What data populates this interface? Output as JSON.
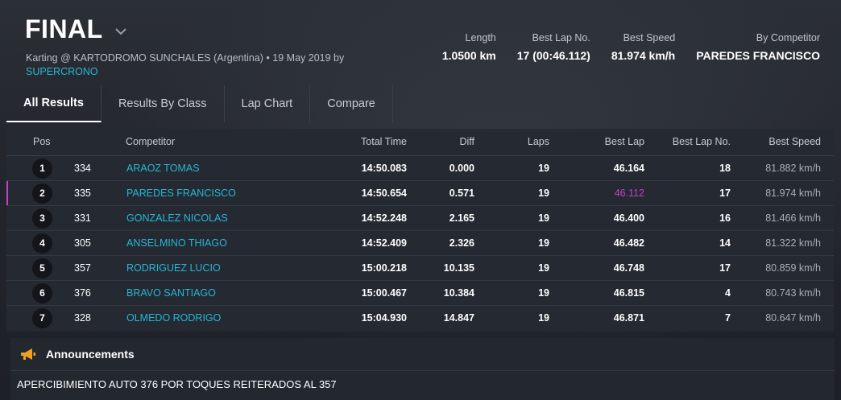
{
  "header": {
    "title": "FINAL",
    "subtitle_main": "Karting @ KARTODROMO SUNCHALES (Argentina) • 19 May 2019 by",
    "subtitle_link": "SUPERCRONO",
    "stats": [
      {
        "label": "Length",
        "value": "1.0500 km"
      },
      {
        "label": "Best Lap No.",
        "value": "17 (00:46.112)"
      },
      {
        "label": "Best Speed",
        "value": "81.974 km/h"
      },
      {
        "label": "By Competitor",
        "value": "PAREDES FRANCISCO"
      }
    ]
  },
  "tabs": [
    "All Results",
    "Results By Class",
    "Lap Chart",
    "Compare"
  ],
  "table": {
    "columns": {
      "pos": "Pos",
      "competitor": "Competitor",
      "total": "Total Time",
      "diff": "Diff",
      "laps": "Laps",
      "best": "Best Lap",
      "bln": "Best Lap No.",
      "speed": "Best Speed"
    },
    "rows": [
      {
        "pos": "1",
        "num": "334",
        "name": "ARAOZ TOMAS",
        "total": "14:50.083",
        "diff": "0.000",
        "laps": "19",
        "best": "46.164",
        "bln": "18",
        "speed": "81.882 km/h"
      },
      {
        "pos": "2",
        "num": "335",
        "name": "PAREDES FRANCISCO",
        "total": "14:50.654",
        "diff": "0.571",
        "laps": "19",
        "best": "46.112",
        "bln": "17",
        "speed": "81.974 km/h"
      },
      {
        "pos": "3",
        "num": "331",
        "name": "GONZALEZ NICOLAS",
        "total": "14:52.248",
        "diff": "2.165",
        "laps": "19",
        "best": "46.400",
        "bln": "16",
        "speed": "81.466 km/h"
      },
      {
        "pos": "4",
        "num": "305",
        "name": "ANSELMINO THIAGO",
        "total": "14:52.409",
        "diff": "2.326",
        "laps": "19",
        "best": "46.482",
        "bln": "14",
        "speed": "81.322 km/h"
      },
      {
        "pos": "5",
        "num": "357",
        "name": "RODRIGUEZ LUCIO",
        "total": "15:00.218",
        "diff": "10.135",
        "laps": "19",
        "best": "46.748",
        "bln": "17",
        "speed": "80.859 km/h"
      },
      {
        "pos": "6",
        "num": "376",
        "name": "BRAVO SANTIAGO",
        "total": "15:00.467",
        "diff": "10.384",
        "laps": "19",
        "best": "46.815",
        "bln": "4",
        "speed": "80.743 km/h"
      },
      {
        "pos": "7",
        "num": "328",
        "name": "OLMEDO RODRIGO",
        "total": "15:04.930",
        "diff": "14.847",
        "laps": "19",
        "best": "46.871",
        "bln": "7",
        "speed": "80.647 km/h"
      }
    ]
  },
  "announcements": {
    "title": "Announcements",
    "icon": "megaphone-icon",
    "text": "APERCIBIMIENTO AUTO 376 POR TOQUES REITERADOS AL 357"
  },
  "colors": {
    "link": "#27b6d6",
    "best_lap_highlight": "#c640c8"
  }
}
